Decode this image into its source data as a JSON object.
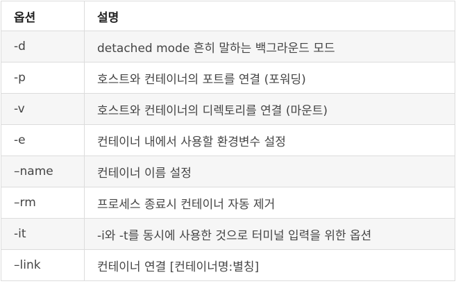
{
  "table": {
    "headers": [
      "옵션",
      "설명"
    ],
    "rows": [
      {
        "option": "-d",
        "description": "detached mode 흔히 말하는 백그라운드 모드"
      },
      {
        "option": "-p",
        "description": "호스트와 컨테이너의 포트를 연결 (포워딩)"
      },
      {
        "option": "-v",
        "description": "호스트와 컨테이너의 디렉토리를 연결 (마운트)"
      },
      {
        "option": "-e",
        "description": "컨테이너 내에서 사용할 환경변수 설정"
      },
      {
        "option": "–name",
        "description": "컨테이너 이름 설정"
      },
      {
        "option": "–rm",
        "description": "프로세스 종료시 컨테이너 자동 제거"
      },
      {
        "option": "-it",
        "description": "-i와 -t를 동시에 사용한 것으로 터미널 입력을 위한 옵션"
      },
      {
        "option": "–link",
        "description": "컨테이너 연결 [컨테이너명:별칭]"
      }
    ]
  }
}
